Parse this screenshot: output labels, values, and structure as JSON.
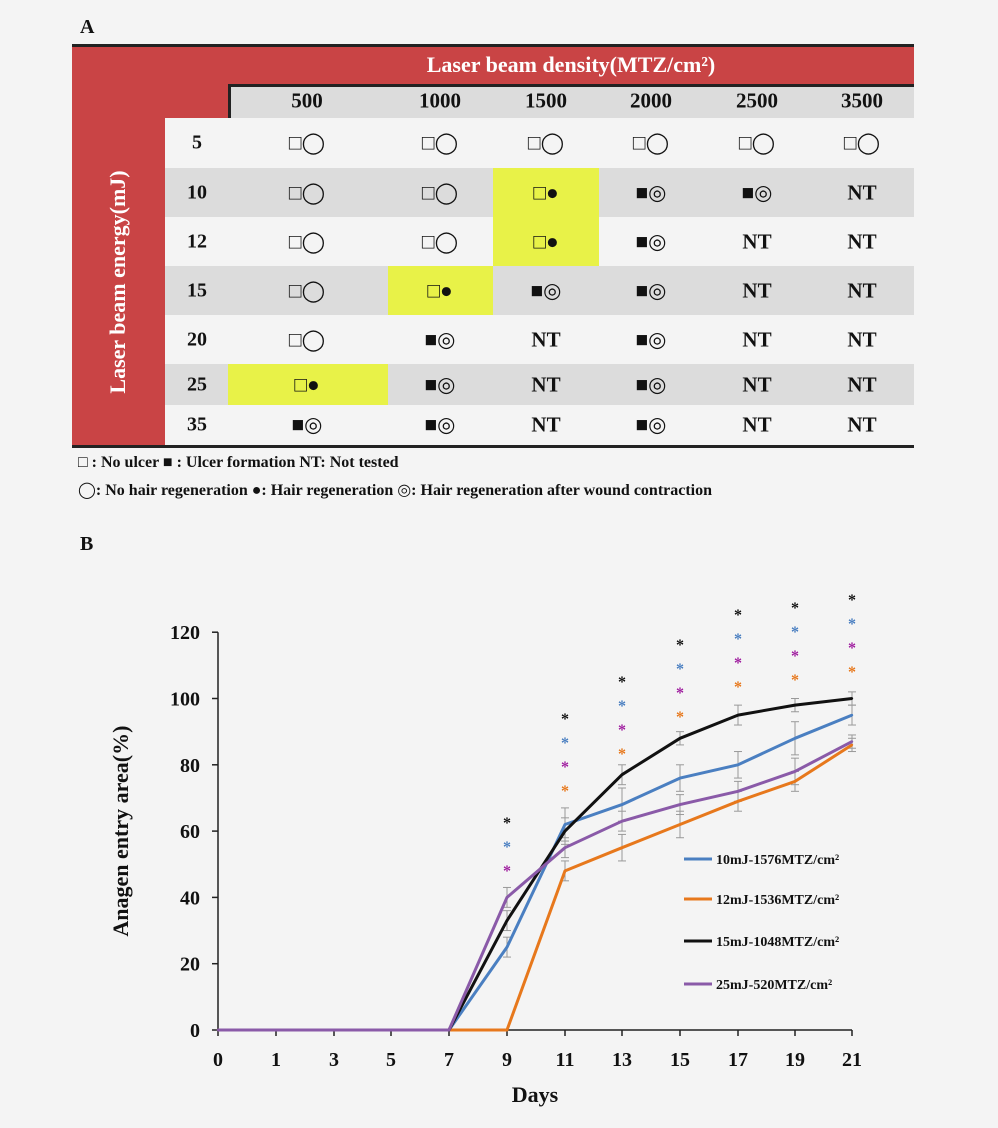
{
  "panel_a_label": "A",
  "panel_b_label": "B",
  "table": {
    "density_title": "Laser beam density(MTZ/cm²)",
    "energy_title": "Laser beam energy(mJ)",
    "columns": [
      "500",
      "1000",
      "1500",
      "2000",
      "2500",
      "3500"
    ],
    "rows": [
      {
        "energy": "5",
        "cells": [
          "□◯",
          "□◯",
          "□◯",
          "□◯",
          "□◯",
          "□◯"
        ],
        "highlight": [
          false,
          false,
          false,
          false,
          false,
          false
        ]
      },
      {
        "energy": "10",
        "cells": [
          "□◯",
          "□◯",
          "□●",
          "■◎",
          "■◎",
          "NT"
        ],
        "highlight": [
          false,
          false,
          true,
          false,
          false,
          false
        ]
      },
      {
        "energy": "12",
        "cells": [
          "□◯",
          "□◯",
          "□●",
          "■◎",
          "NT",
          "NT"
        ],
        "highlight": [
          false,
          false,
          true,
          false,
          false,
          false
        ]
      },
      {
        "energy": "15",
        "cells": [
          "□◯",
          "□●",
          "■◎",
          "■◎",
          "NT",
          "NT"
        ],
        "highlight": [
          false,
          true,
          false,
          false,
          false,
          false
        ]
      },
      {
        "energy": "20",
        "cells": [
          "□◯",
          "■◎",
          "NT",
          "■◎",
          "NT",
          "NT"
        ],
        "highlight": [
          false,
          false,
          false,
          false,
          false,
          false
        ]
      },
      {
        "energy": "25",
        "cells": [
          "□●",
          "■◎",
          "NT",
          "■◎",
          "NT",
          "NT"
        ],
        "highlight": [
          true,
          false,
          false,
          false,
          false,
          false
        ]
      },
      {
        "energy": "35",
        "cells": [
          "■◎",
          "■◎",
          "NT",
          "■◎",
          "NT",
          "NT"
        ],
        "highlight": [
          false,
          false,
          false,
          false,
          false,
          false
        ]
      }
    ],
    "legend_line1": "□ : No ulcer   ■ : Ulcer formation     NT: Not tested",
    "legend_line2": "◯: No hair regeneration  ●: Hair regeneration   ◎: Hair regeneration after wound contraction",
    "colors": {
      "header_red": "#c94445",
      "highlight": "#e8f248",
      "stripe": "#dcdcdc"
    }
  },
  "chart_data": {
    "type": "line",
    "xlabel": "Days",
    "ylabel": "Anagen entry area(%)",
    "x": [
      0,
      1,
      3,
      5,
      7,
      9,
      11,
      13,
      15,
      17,
      19,
      21
    ],
    "ylim": [
      0,
      120
    ],
    "yticks": [
      0,
      20,
      40,
      60,
      80,
      100,
      120
    ],
    "grid": false,
    "legend_position": "right-middle",
    "series": [
      {
        "name": "10mJ-1576MTZ/cm²",
        "color": "#4a7fc1",
        "values": [
          0,
          0,
          0,
          0,
          0,
          25,
          62,
          68,
          76,
          80,
          88,
          95
        ],
        "err": [
          0,
          0,
          0,
          0,
          0,
          3,
          5,
          5,
          4,
          4,
          5,
          3
        ]
      },
      {
        "name": "12mJ-1536MTZ/cm²",
        "color": "#e7781c",
        "values": [
          0,
          0,
          0,
          0,
          0,
          0,
          48,
          55,
          62,
          69,
          75,
          86
        ],
        "err": [
          0,
          0,
          0,
          0,
          0,
          0,
          3,
          4,
          4,
          3,
          3,
          2
        ]
      },
      {
        "name": "15mJ-1048MTZ/cm²",
        "color": "#111111",
        "values": [
          0,
          0,
          0,
          0,
          0,
          33,
          60,
          77,
          88,
          95,
          98,
          100
        ],
        "err": [
          0,
          0,
          0,
          0,
          0,
          3,
          4,
          3,
          2,
          3,
          2,
          2
        ]
      },
      {
        "name": "25mJ-520MTZ/cm²",
        "color": "#8a5aa8",
        "values": [
          0,
          0,
          0,
          0,
          0,
          40,
          55,
          63,
          68,
          72,
          78,
          87
        ],
        "err": [
          0,
          0,
          0,
          0,
          0,
          3,
          3,
          3,
          3,
          3,
          4,
          2
        ]
      }
    ],
    "significance": [
      {
        "x": 9,
        "colors": [
          "#111111",
          "#4a7fc1",
          "#a020a0"
        ]
      },
      {
        "x": 11,
        "colors": [
          "#111111",
          "#4a7fc1",
          "#a020a0",
          "#e7781c"
        ]
      },
      {
        "x": 13,
        "colors": [
          "#111111",
          "#4a7fc1",
          "#a020a0",
          "#e7781c"
        ]
      },
      {
        "x": 15,
        "colors": [
          "#111111",
          "#4a7fc1",
          "#a020a0",
          "#e7781c"
        ]
      },
      {
        "x": 17,
        "colors": [
          "#111111",
          "#4a7fc1",
          "#a020a0",
          "#e7781c"
        ]
      },
      {
        "x": 19,
        "colors": [
          "#111111",
          "#4a7fc1",
          "#a020a0",
          "#e7781c"
        ]
      },
      {
        "x": 21,
        "colors": [
          "#111111",
          "#4a7fc1",
          "#a020a0",
          "#e7781c"
        ]
      }
    ],
    "significance_symbol": "*"
  }
}
